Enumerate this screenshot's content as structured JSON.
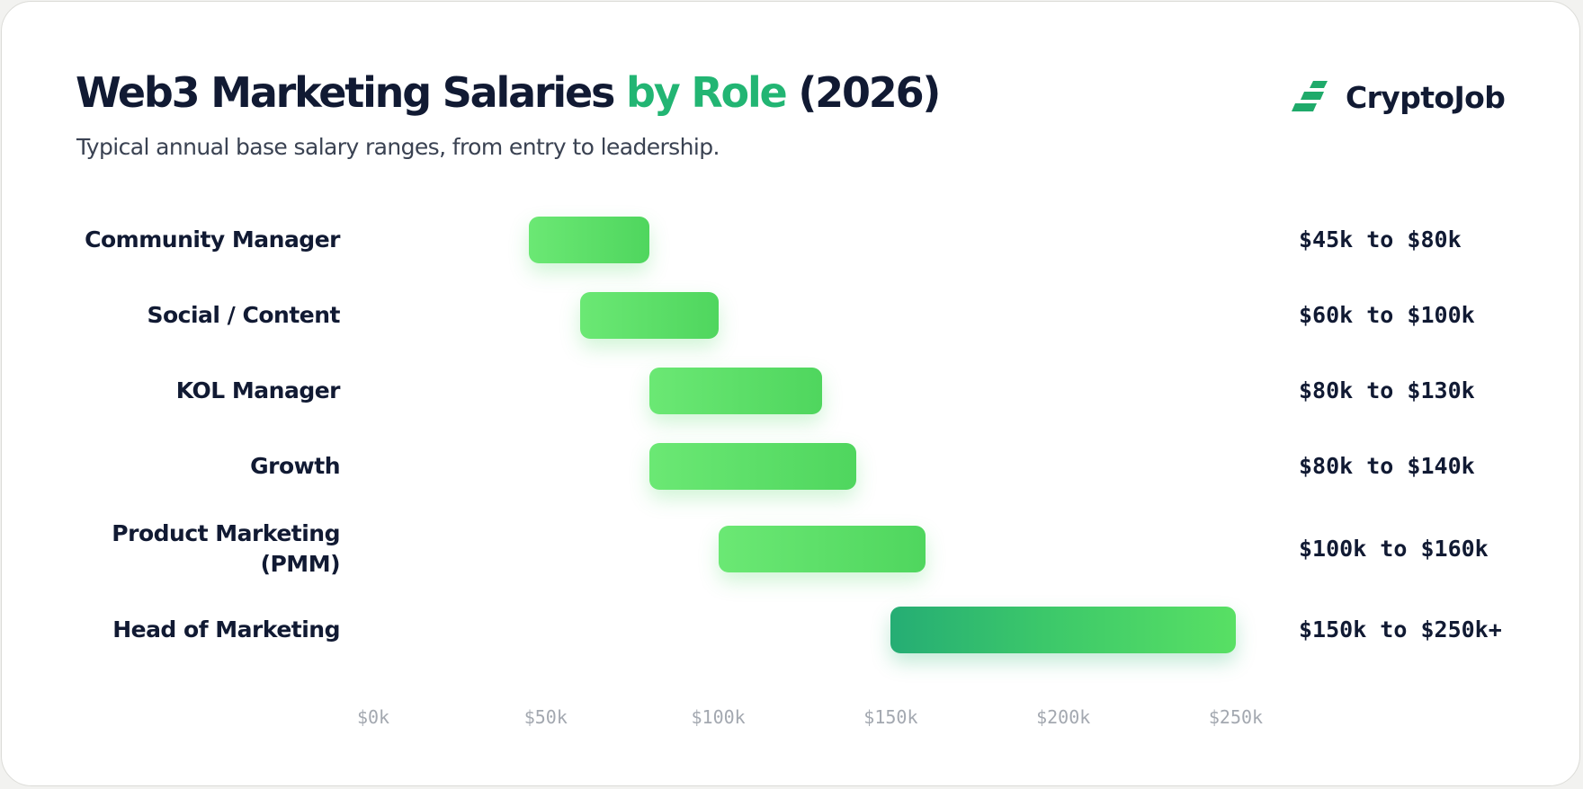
{
  "header": {
    "title_part1": "Web3 Marketing Salaries",
    "title_accent": "by Role",
    "title_part2": "(2026)",
    "subtitle": "Typical annual base salary ranges, from entry to leadership."
  },
  "brand": {
    "name": "CryptoJob",
    "icon": "stairs-logo-icon",
    "color": "#1faa6a"
  },
  "colors": {
    "accent": "#22b573",
    "bar": "#5fe06a",
    "bar_lead": "#27ae73",
    "text": "#111a33"
  },
  "chart_data": {
    "type": "bar",
    "orientation": "horizontal-range",
    "title": "Web3 Marketing Salaries by Role (2026)",
    "subtitle": "Typical annual base salary ranges, from entry to leadership.",
    "categories": [
      "Community Manager",
      "Social / Content",
      "KOL Manager",
      "Growth",
      "Product Marketing (PMM)",
      "Head of Marketing"
    ],
    "series": [
      {
        "values": [
          {
            "min": 45,
            "max": 80
          },
          {
            "min": 60,
            "max": 100
          },
          {
            "min": 80,
            "max": 130
          },
          {
            "min": 80,
            "max": 140
          },
          {
            "min": 100,
            "max": 160
          },
          {
            "min": 150,
            "max": 250
          }
        ]
      }
    ],
    "range_labels": [
      "$45k to $80k",
      "$60k to $100k",
      "$80k to $130k",
      "$80k to $140k",
      "$100k to $160k",
      "$150k to $250k+"
    ],
    "xlim": [
      0,
      250
    ],
    "x_ticks": [
      0,
      50,
      100,
      150,
      200,
      250
    ],
    "x_tick_labels": [
      "$0k",
      "$50k",
      "$100k",
      "$150k",
      "$200k",
      "$250k"
    ],
    "xlabel": "",
    "ylabel": "",
    "grid": false,
    "legend": "none"
  }
}
